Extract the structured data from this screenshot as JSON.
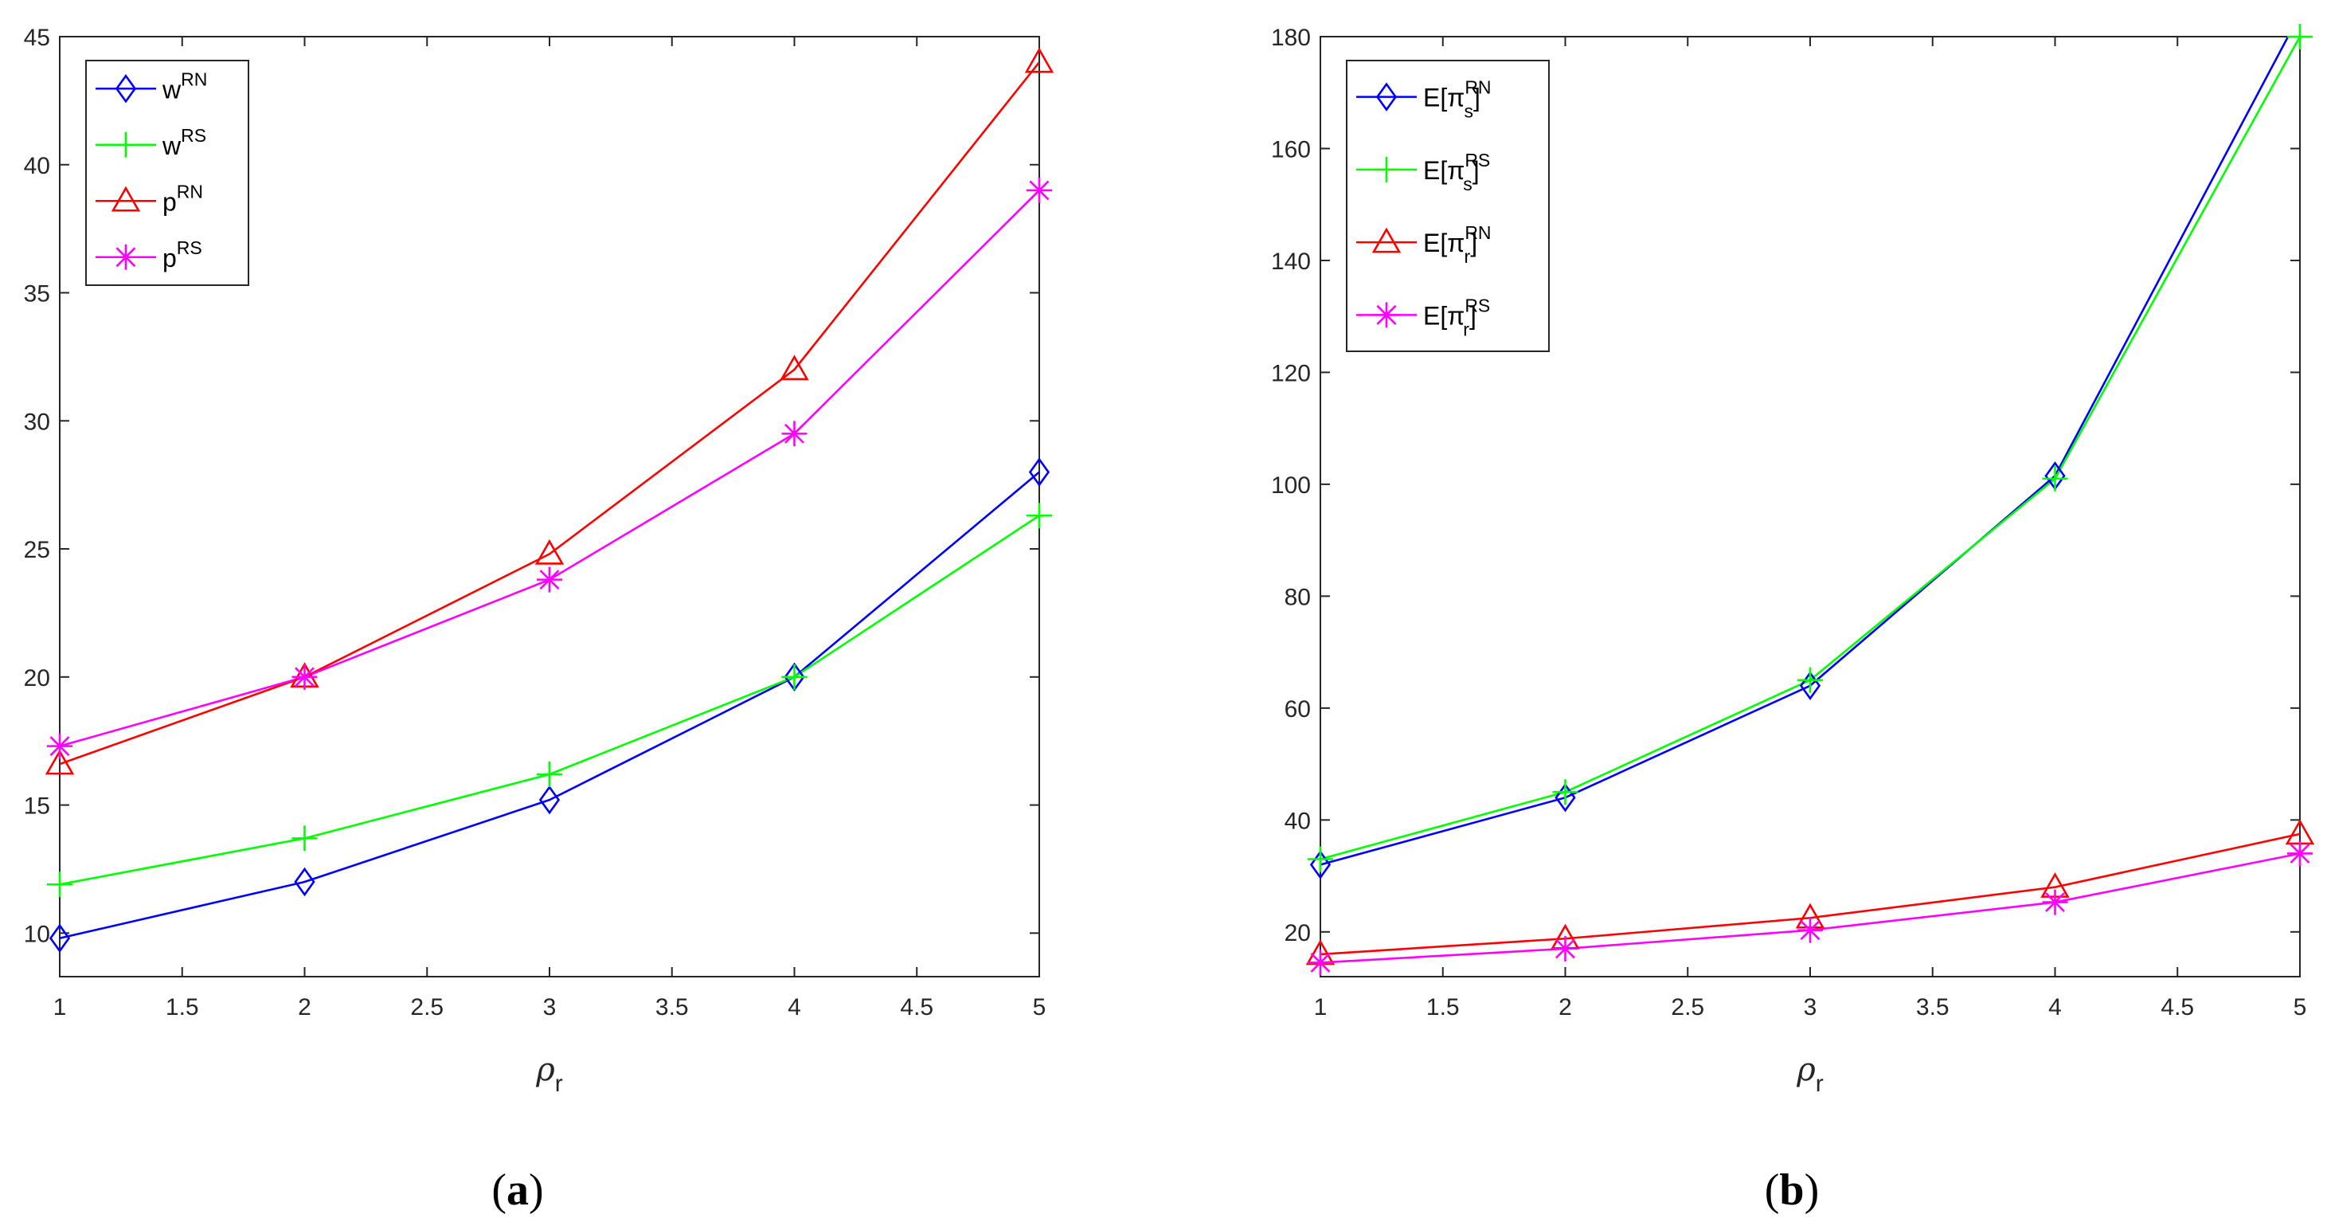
{
  "chart_data": [
    {
      "type": "line",
      "panel": "a",
      "caption": {
        "open": "(",
        "letter": "a",
        "close": ")"
      },
      "xlabel": {
        "symbol": "ρ",
        "sub": "r"
      },
      "xlim": [
        1,
        5
      ],
      "ylim": [
        8.3,
        45
      ],
      "xticks": [
        1,
        1.5,
        2,
        2.5,
        3,
        3.5,
        4,
        4.5,
        5
      ],
      "yticks": [
        10,
        15,
        20,
        25,
        30,
        35,
        40,
        45
      ],
      "legend_position": "top-left",
      "x": [
        1,
        2,
        3,
        4,
        5
      ],
      "series": [
        {
          "name": "wRN",
          "label": {
            "prefix": "w",
            "sup": "RN",
            "sub": "",
            "suffix": ""
          },
          "color": "#0000ff",
          "marker": "diamond",
          "values": [
            9.8,
            12.0,
            15.2,
            20.0,
            28.0
          ]
        },
        {
          "name": "wRS",
          "label": {
            "prefix": "w",
            "sup": "RS",
            "sub": "",
            "suffix": ""
          },
          "color": "#00ff00",
          "marker": "plus",
          "values": [
            11.9,
            13.7,
            16.2,
            20.0,
            26.3
          ]
        },
        {
          "name": "pRN",
          "label": {
            "prefix": "p",
            "sup": "RN",
            "sub": "",
            "suffix": ""
          },
          "color": "#ff0000",
          "marker": "triangle",
          "values": [
            16.6,
            20.0,
            24.8,
            32.0,
            44.0
          ]
        },
        {
          "name": "pRS",
          "label": {
            "prefix": "p",
            "sup": "RS",
            "sub": "",
            "suffix": ""
          },
          "color": "#ff00ff",
          "marker": "asterisk",
          "values": [
            17.3,
            20.0,
            23.8,
            29.5,
            39.0
          ]
        }
      ]
    },
    {
      "type": "line",
      "panel": "b",
      "caption": {
        "open": "(",
        "letter": "b",
        "close": ")"
      },
      "xlabel": {
        "symbol": "ρ",
        "sub": "r"
      },
      "xlim": [
        1,
        5
      ],
      "ylim": [
        12,
        180
      ],
      "xticks": [
        1,
        1.5,
        2,
        2.5,
        3,
        3.5,
        4,
        4.5,
        5
      ],
      "yticks": [
        20,
        40,
        60,
        80,
        100,
        120,
        140,
        160,
        180
      ],
      "legend_position": "top-left",
      "x": [
        1,
        2,
        3,
        4,
        5
      ],
      "series": [
        {
          "name": "E[πsRN]",
          "label": {
            "prefix": "E[π",
            "sup": "RN",
            "sub": "s",
            "suffix": "]"
          },
          "color": "#0000ff",
          "marker": "diamond",
          "values": [
            32,
            44,
            64,
            101.5,
            184
          ]
        },
        {
          "name": "E[πsRS]",
          "label": {
            "prefix": "E[π",
            "sup": "RS",
            "sub": "s",
            "suffix": "]"
          },
          "color": "#00ff00",
          "marker": "plus",
          "values": [
            33,
            45,
            65,
            101,
            180
          ]
        },
        {
          "name": "E[πrRN]",
          "label": {
            "prefix": "E[π",
            "sup": "RN",
            "sub": "r",
            "suffix": "]"
          },
          "color": "#ff0000",
          "marker": "triangle",
          "values": [
            16,
            18.8,
            22.5,
            28,
            37.5
          ]
        },
        {
          "name": "E[πrRS]",
          "label": {
            "prefix": "E[π",
            "sup": "RS",
            "sub": "r",
            "suffix": "]"
          },
          "color": "#ff00ff",
          "marker": "asterisk",
          "values": [
            14.5,
            17,
            20.3,
            25.3,
            34
          ]
        }
      ]
    }
  ]
}
